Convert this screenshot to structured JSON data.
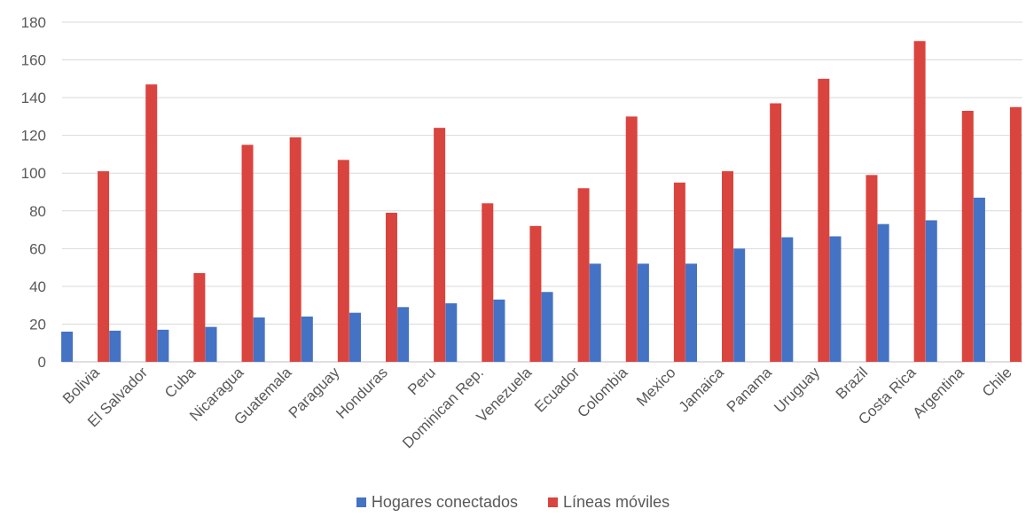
{
  "chart_data": {
    "type": "bar",
    "categories": [
      "Bolivia",
      "El Salvador",
      "Cuba",
      "Nicaragua",
      "Guatemala",
      "Paraguay",
      "Honduras",
      "Peru",
      "Dominican Rep.",
      "Venezuela",
      "Ecuador",
      "Colombia",
      "Mexico",
      "Jamaica",
      "Panama",
      "Uruguay",
      "Brazil",
      "Costa Rica",
      "Argentina",
      "Chile"
    ],
    "series": [
      {
        "name": "Hogares conectados",
        "color": "#4472C4",
        "values": [
          16,
          16.5,
          17,
          18.5,
          23.5,
          24,
          26,
          29,
          31,
          33,
          37,
          52,
          52,
          52,
          60,
          66,
          66.5,
          73,
          75,
          87
        ]
      },
      {
        "name": "Líneas móviles",
        "color": "#D9443F",
        "values": [
          101,
          147,
          47,
          115,
          119,
          107,
          79,
          124,
          84,
          72,
          92,
          130,
          95,
          101,
          137,
          150,
          99,
          170,
          133,
          135
        ]
      }
    ],
    "ylim": [
      0,
      180
    ],
    "yticks": [
      0,
      20,
      40,
      60,
      80,
      100,
      120,
      140,
      160,
      180
    ],
    "grid": true,
    "legend_position": "bottom",
    "title": "",
    "xlabel": "",
    "ylabel": ""
  }
}
